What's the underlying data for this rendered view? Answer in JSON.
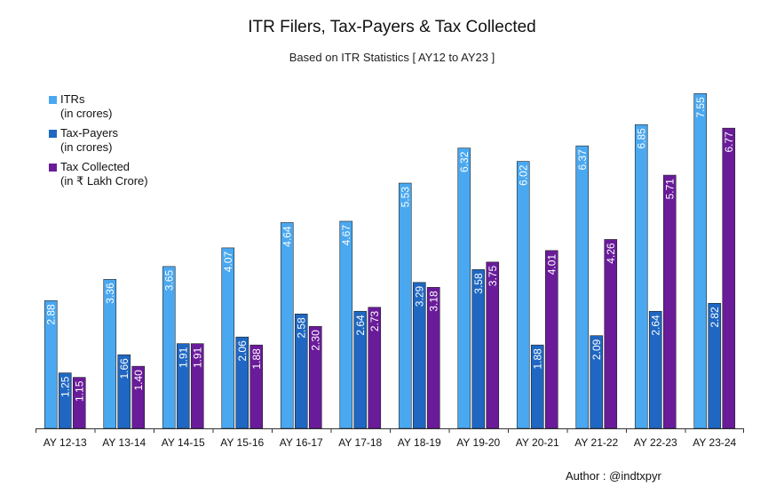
{
  "chart_data": {
    "type": "bar",
    "title": "ITR Filers, Tax-Payers & Tax Collected",
    "subtitle": "Based on ITR Statistics [ AY12 to AY23 ]",
    "xlabel": "",
    "ylabel": "",
    "ylim": [
      0,
      8
    ],
    "grid": false,
    "legend_position": "top-left",
    "categories": [
      "AY 12-13",
      "AY 13-14",
      "AY 14-15",
      "AY 15-16",
      "AY 16-17",
      "AY 17-18",
      "AY 18-19",
      "AY 19-20",
      "AY 20-21",
      "AY 21-22",
      "AY 22-23",
      "AY 23-24"
    ],
    "series": [
      {
        "name": "ITRs",
        "unit": "(in crores)",
        "color": "#4aa8f0",
        "values": [
          2.88,
          3.36,
          3.65,
          4.07,
          4.64,
          4.67,
          5.53,
          6.32,
          6.02,
          6.37,
          6.85,
          7.55
        ]
      },
      {
        "name": "Tax-Payers",
        "unit": "(in crores)",
        "color": "#1f67c2",
        "values": [
          1.25,
          1.66,
          1.91,
          2.06,
          2.58,
          2.64,
          3.29,
          3.58,
          1.88,
          2.09,
          2.64,
          2.82
        ]
      },
      {
        "name": "Tax Collected",
        "unit": "(in ₹ Lakh Crore)",
        "color": "#6a1b9a",
        "values": [
          1.15,
          1.4,
          1.91,
          1.88,
          2.3,
          2.73,
          3.18,
          3.75,
          4.01,
          4.26,
          5.71,
          6.77
        ]
      }
    ]
  },
  "author": "Author : @indtxpyr"
}
